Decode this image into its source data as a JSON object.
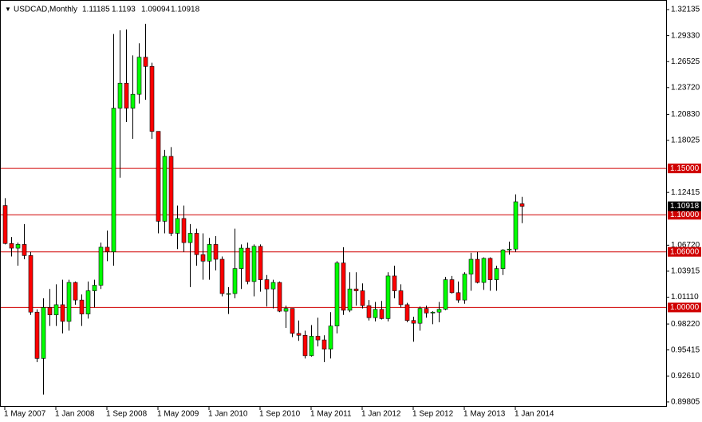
{
  "chart_data": {
    "type": "candlestick",
    "symbol": "USDCAD,Monthly",
    "categories": [
      "1 May 2007",
      null,
      null,
      null,
      null,
      null,
      null,
      null,
      "1 Jan 2008",
      null,
      null,
      null,
      null,
      null,
      null,
      null,
      "1 Sep 2008",
      null,
      null,
      null,
      null,
      null,
      null,
      null,
      "1 May 2009",
      null,
      null,
      null,
      null,
      null,
      null,
      null,
      "1 Jan 2010",
      null,
      null,
      null,
      null,
      null,
      null,
      null,
      "1 Sep 2010",
      null,
      null,
      null,
      null,
      null,
      null,
      null,
      "1 May 2011",
      null,
      null,
      null,
      null,
      null,
      null,
      null,
      "1 Jan 2012",
      null,
      null,
      null,
      null,
      null,
      null,
      null,
      "1 Sep 2012",
      null,
      null,
      null,
      null,
      null,
      null,
      null,
      "1 May 2013",
      null,
      null,
      null,
      null,
      null,
      null,
      null,
      "1 Jan 2014",
      null
    ],
    "open": [
      1.11,
      1.069,
      1.064,
      1.068,
      1.056,
      0.995,
      0.945,
      1.0,
      0.992,
      1.003,
      0.985,
      1.027,
      1.008,
      0.993,
      1.018,
      1.024,
      1.065,
      1.06,
      1.215,
      1.242,
      1.215,
      1.23,
      1.27,
      1.26,
      1.19,
      1.093,
      1.163,
      1.08,
      1.096,
      1.07,
      1.08,
      1.057,
      1.05,
      1.068,
      1.052,
      1.015,
      1.015,
      1.042,
      1.064,
      1.028,
      1.066,
      1.03,
      1.02,
      1.027,
      0.996,
      0.999,
      0.972,
      0.97,
      0.948,
      0.969,
      0.965,
      0.955,
      0.98,
      1.048,
      0.997,
      1.02,
      1.018,
      1.002,
      0.989,
      0.998,
      0.988,
      1.034,
      1.018,
      1.003,
      0.986,
      0.983,
      0.999,
      0.994,
      0.995,
      0.998,
      1.03,
      1.016,
      1.008,
      1.036,
      1.052,
      1.027,
      1.053,
      1.03,
      1.042,
      1.062,
      1.063,
      1.11185
    ],
    "high": [
      1.118,
      1.076,
      1.07,
      1.09,
      1.06,
      0.998,
      1.01,
      1.02,
      1.025,
      1.03,
      1.03,
      1.028,
      1.014,
      1.028,
      1.03,
      1.07,
      1.083,
      1.295,
      1.299,
      1.3,
      1.272,
      1.285,
      1.306,
      1.264,
      1.19,
      1.17,
      1.173,
      1.11,
      1.11,
      1.09,
      1.085,
      1.08,
      1.075,
      1.077,
      1.055,
      1.022,
      1.085,
      1.068,
      1.07,
      1.068,
      1.068,
      1.035,
      1.03,
      1.028,
      1.002,
      0.999,
      0.986,
      0.975,
      0.981,
      0.989,
      0.97,
      0.995,
      1.05,
      1.065,
      1.038,
      1.038,
      1.026,
      1.008,
      1.006,
      1.007,
      1.038,
      1.045,
      1.025,
      1.005,
      0.99,
      1.001,
      1.002,
      0.996,
      1.006,
      1.033,
      1.034,
      1.028,
      1.038,
      1.059,
      1.06,
      1.054,
      1.054,
      1.045,
      1.063,
      1.071,
      1.122,
      1.1193
    ],
    "low": [
      1.068,
      1.055,
      1.045,
      1.052,
      0.992,
      0.941,
      0.906,
      0.98,
      0.98,
      0.972,
      0.975,
      1.003,
      0.98,
      0.988,
      1.0,
      1.02,
      1.05,
      1.045,
      1.14,
      1.2,
      1.182,
      1.22,
      1.224,
      1.182,
      1.08,
      1.08,
      1.077,
      1.063,
      1.06,
      1.022,
      1.045,
      1.03,
      1.03,
      1.04,
      1.012,
      0.993,
      1.01,
      1.02,
      1.025,
      1.012,
      1.017,
      1.001,
      0.999,
      0.995,
      0.978,
      0.968,
      0.964,
      0.945,
      0.947,
      0.958,
      0.941,
      0.945,
      0.972,
      0.992,
      0.995,
      1.002,
      0.999,
      0.986,
      0.985,
      0.987,
      0.985,
      1.01,
      1.0,
      0.984,
      0.963,
      0.975,
      0.989,
      0.982,
      0.984,
      0.997,
      1.015,
      1.005,
      1.004,
      1.018,
      1.026,
      1.019,
      1.018,
      1.018,
      1.035,
      1.057,
      1.06,
      1.09094
    ],
    "close": [
      1.069,
      1.064,
      1.068,
      1.056,
      0.995,
      0.945,
      1.0,
      0.992,
      1.003,
      0.985,
      1.027,
      1.008,
      0.993,
      1.018,
      1.024,
      1.065,
      1.06,
      1.215,
      1.242,
      1.215,
      1.23,
      1.27,
      1.26,
      1.19,
      1.093,
      1.163,
      1.08,
      1.096,
      1.07,
      1.08,
      1.057,
      1.05,
      1.068,
      1.052,
      1.015,
      1.015,
      1.042,
      1.064,
      1.028,
      1.066,
      1.03,
      1.02,
      1.027,
      0.996,
      0.999,
      0.972,
      0.97,
      0.948,
      0.969,
      0.965,
      0.955,
      0.98,
      1.048,
      0.997,
      1.02,
      1.018,
      1.002,
      0.989,
      0.998,
      0.988,
      1.034,
      1.018,
      1.003,
      0.986,
      0.983,
      0.999,
      0.994,
      0.995,
      0.998,
      1.03,
      1.016,
      1.008,
      1.036,
      1.052,
      1.027,
      1.053,
      1.03,
      1.042,
      1.062,
      1.063,
      1.114,
      1.10918
    ],
    "up_color": "#00ff00",
    "down_color": "#ff0000",
    "level_color": "#d00000",
    "ylim": [
      0.8928,
      1.3317
    ],
    "yticks": [
      1.32135,
      {
        "value": 1.2933,
        "label": "1.29330"
      },
      1.26525,
      {
        "value": 1.2372,
        "label": "1.23720"
      },
      {
        "value": 1.2083,
        "label": "1.20830"
      },
      1.18025,
      1.12415,
      {
        "value": 1.0672,
        "label": "1.06720"
      },
      1.03915,
      {
        "value": 1.0111,
        "label": "1.01110"
      },
      {
        "value": 0.9822,
        "label": "0.98220"
      },
      0.95415,
      {
        "value": 0.9261,
        "label": "0.92610"
      },
      0.89805
    ],
    "levels": [
      {
        "value": 1.15,
        "label": "1.15000"
      },
      {
        "value": 1.1,
        "label": "1.10000"
      },
      {
        "value": 1.06,
        "label": "1.06000"
      },
      {
        "value": 1.0,
        "label": "1.00000"
      }
    ]
  }
}
